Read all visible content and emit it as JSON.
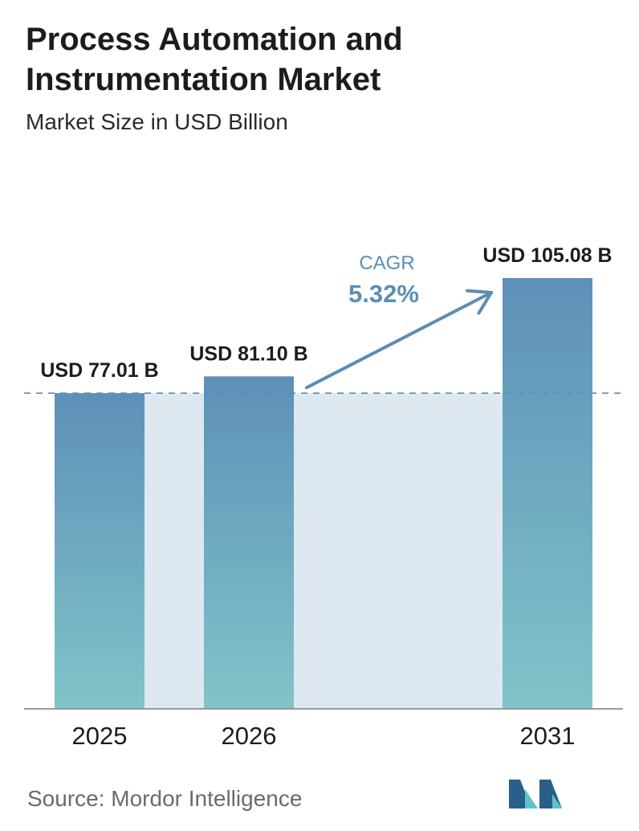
{
  "header": {
    "title": "Process Automation and Instrumentation Market",
    "subtitle": "Market Size in USD Billion"
  },
  "footer": {
    "source": "Source:  Mordor Intelligence"
  },
  "cagr": {
    "label": "CAGR",
    "value": "5.32%"
  },
  "colors": {
    "bar_top": "#5e90b8",
    "bar_bottom": "#80c4c9",
    "band": "#dde8f1",
    "accent": "#5b8db5",
    "axis": "#9a9a9a",
    "logo_dark": "#2a5f8a",
    "logo_light": "#5fc3c6"
  },
  "logo_icon": "mordor-intelligence-logo-icon",
  "chart_data": {
    "type": "bar",
    "categories": [
      "2025",
      "2026",
      "2031"
    ],
    "values": [
      77.01,
      81.1,
      105.08
    ],
    "value_labels": [
      "USD 77.01 B",
      "USD 81.10 B",
      "USD 105.08 B"
    ],
    "title": "Process Automation and Instrumentation Market",
    "subtitle": "Market Size in USD Billion",
    "xlabel": "",
    "ylabel": "",
    "ylim": [
      0,
      105.08
    ],
    "grid": false,
    "legend": "none",
    "reference_line": 77.01
  }
}
